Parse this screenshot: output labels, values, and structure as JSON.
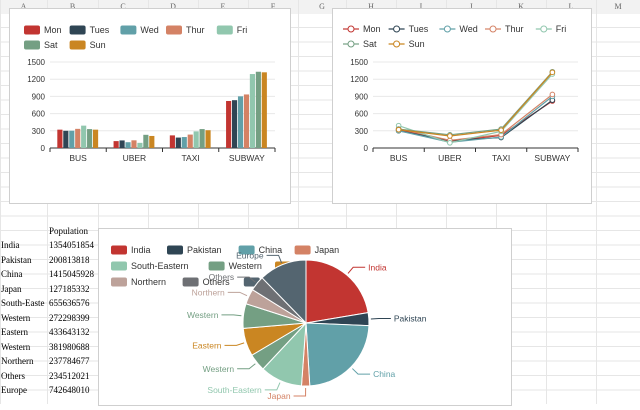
{
  "columns": [
    "A",
    "B",
    "C",
    "D",
    "E",
    "F",
    "G",
    "H",
    "I",
    "J",
    "K",
    "L",
    "M"
  ],
  "table": {
    "header": "Population",
    "rows": [
      {
        "label": "India",
        "value": "1354051854"
      },
      {
        "label": "Pakistan",
        "value": "200813818"
      },
      {
        "label": "China",
        "value": "1415045928"
      },
      {
        "label": "Japan",
        "value": "127185332"
      },
      {
        "label": "South-Easte",
        "value": "655636576"
      },
      {
        "label": "Western",
        "value": "272298399"
      },
      {
        "label": "Eastern",
        "value": "433643132"
      },
      {
        "label": "Western",
        "value": "381980688"
      },
      {
        "label": "Northern",
        "value": "237784677"
      },
      {
        "label": "Others",
        "value": "234512021"
      },
      {
        "label": "Europe",
        "value": "742648010"
      }
    ]
  },
  "chart_data": [
    {
      "type": "bar",
      "categories": [
        "BUS",
        "UBER",
        "TAXI",
        "SUBWAY"
      ],
      "ylim": [
        0,
        1500
      ],
      "yticks": [
        "0",
        "300",
        "600",
        "900",
        "1200",
        "1500"
      ],
      "legend_position": "top-left",
      "series": [
        {
          "name": "Mon",
          "color": "#c23531",
          "values": [
            320,
            120,
            220,
            820
          ]
        },
        {
          "name": "Tues",
          "color": "#2f4554",
          "values": [
            300,
            132,
            182,
            834
          ]
        },
        {
          "name": "Wed",
          "color": "#61a0a8",
          "values": [
            301,
            101,
            191,
            901
          ]
        },
        {
          "name": "Thur",
          "color": "#d48265",
          "values": [
            334,
            134,
            234,
            934
          ]
        },
        {
          "name": "Fri",
          "color": "#91c7ae",
          "values": [
            390,
            90,
            290,
            1290
          ]
        },
        {
          "name": "Sat",
          "color": "#749f83",
          "values": [
            330,
            230,
            330,
            1330
          ]
        },
        {
          "name": "Sun",
          "color": "#ca8622",
          "values": [
            320,
            210,
            310,
            1320
          ]
        }
      ]
    },
    {
      "type": "line",
      "categories": [
        "BUS",
        "UBER",
        "TAXI",
        "SUBWAY"
      ],
      "ylim": [
        0,
        1500
      ],
      "yticks": [
        "0",
        "300",
        "600",
        "900",
        "1200",
        "1500"
      ],
      "legend_position": "top-left",
      "series": [
        {
          "name": "Mon",
          "color": "#c23531",
          "values": [
            320,
            120,
            220,
            820
          ]
        },
        {
          "name": "Tues",
          "color": "#2f4554",
          "values": [
            300,
            132,
            182,
            834
          ]
        },
        {
          "name": "Wed",
          "color": "#61a0a8",
          "values": [
            301,
            101,
            191,
            901
          ]
        },
        {
          "name": "Thur",
          "color": "#d48265",
          "values": [
            334,
            134,
            234,
            934
          ]
        },
        {
          "name": "Fri",
          "color": "#91c7ae",
          "values": [
            390,
            90,
            290,
            1290
          ]
        },
        {
          "name": "Sat",
          "color": "#749f83",
          "values": [
            330,
            230,
            330,
            1330
          ]
        },
        {
          "name": "Sun",
          "color": "#ca8622",
          "values": [
            320,
            210,
            310,
            1320
          ]
        }
      ]
    },
    {
      "type": "pie",
      "legend_position": "top-left",
      "slices": [
        {
          "name": "India",
          "value": 1354051854,
          "color": "#c23531"
        },
        {
          "name": "Pakistan",
          "value": 200813818,
          "color": "#2f4554"
        },
        {
          "name": "China",
          "value": 1415045928,
          "color": "#61a0a8"
        },
        {
          "name": "Japan",
          "value": 127185332,
          "color": "#d48265"
        },
        {
          "name": "South-Eastern",
          "value": 655636576,
          "color": "#91c7ae"
        },
        {
          "name": "Western",
          "value": 272298399,
          "color": "#749f83"
        },
        {
          "name": "Eastern",
          "value": 433643132,
          "color": "#ca8622"
        },
        {
          "name": "Western",
          "value": 381980688,
          "color": "#749f83"
        },
        {
          "name": "Northern",
          "value": 237784677,
          "color": "#bda29a"
        },
        {
          "name": "Others",
          "value": 234512021,
          "color": "#6e7074"
        },
        {
          "name": "Europe",
          "value": 742648010,
          "color": "#546570"
        }
      ],
      "legend": [
        {
          "name": "India",
          "color": "#c23531"
        },
        {
          "name": "Pakistan",
          "color": "#2f4554"
        },
        {
          "name": "China",
          "color": "#61a0a8"
        },
        {
          "name": "Japan",
          "color": "#d48265"
        },
        {
          "name": "South-Eastern",
          "color": "#91c7ae"
        },
        {
          "name": "Western",
          "color": "#749f83"
        },
        {
          "name": "Eastern",
          "color": "#ca8622"
        },
        {
          "name": "Northern",
          "color": "#bda29a"
        },
        {
          "name": "Others",
          "color": "#6e7074"
        },
        {
          "name": "Europe",
          "color": "#546570"
        }
      ]
    }
  ]
}
